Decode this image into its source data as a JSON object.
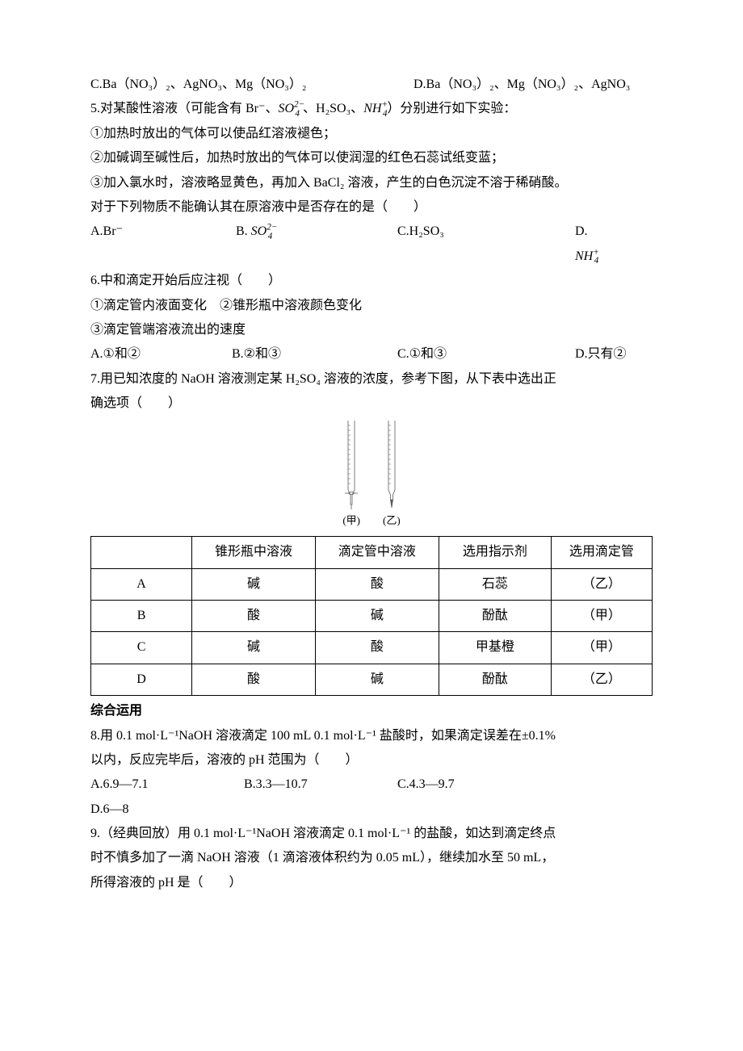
{
  "q4": {
    "optC": "C.Ba（NO₃）₂、AgNO₃、Mg（NO₃）₂",
    "optD": "D.Ba（NO₃）₂、Mg（NO₃）₂、AgNO₃"
  },
  "q5": {
    "stem_pre": "5.对某酸性溶液（可能含有 Br⁻、",
    "so4_core": "SO",
    "so4_charge": "2−",
    "so4_sub": "4",
    "mid1": " 、H₂SO₃、",
    "nh4_core": "NH",
    "nh4_charge": "+",
    "nh4_sub": "4",
    "stem_post": "）分别进行如下实验：",
    "l1": "①加热时放出的气体可以使品红溶液褪色；",
    "l2": "②加碱调至碱性后，加热时放出的气体可以使润湿的红色石蕊试纸变蓝；",
    "l3": "③加入氯水时，溶液略显黄色，再加入 BaCl₂ 溶液，产生的白色沉淀不溶于稀硝酸。",
    "ask": "对于下列物质不能确认其在原溶液中是否存在的是（　　）",
    "optA": "A.Br⁻",
    "optB_pre": "B. ",
    "optC": "C.H₂SO₃",
    "optD_pre": "D. "
  },
  "q6": {
    "stem": "6.中和滴定开始后应注视（　　）",
    "l1": "①滴定管内液面变化　②锥形瓶中溶液颜色变化",
    "l2": "③滴定管端溶液流出的速度",
    "optA": "A.①和②",
    "optB": "B.②和③",
    "optC": "C.①和③",
    "optD": "D.只有②"
  },
  "q7": {
    "stem1": "7.用已知浓度的 NaOH 溶液测定某 H₂SO₄ 溶液的浓度，参考下图，从下表中选出正",
    "stem2": "确选项（　　）",
    "fig_label_left": "(甲)",
    "fig_label_right": "(乙)",
    "svg_stroke": "#5a5a5a",
    "table": {
      "headers": [
        "",
        "锥形瓶中溶液",
        "滴定管中溶液",
        "选用指示剂",
        "选用滴定管"
      ],
      "rows": [
        [
          "A",
          "碱",
          "酸",
          "石蕊",
          "（乙）"
        ],
        [
          "B",
          "酸",
          "碱",
          "酚酞",
          "（甲）"
        ],
        [
          "C",
          "碱",
          "酸",
          "甲基橙",
          "（甲）"
        ],
        [
          "D",
          "酸",
          "碱",
          "酚酞",
          "（乙）"
        ]
      ],
      "col_widths": [
        "18%",
        "22%",
        "22%",
        "20%",
        "18%"
      ]
    }
  },
  "section2": "综合运用",
  "q8": {
    "stem1": "8.用 0.1 mol·L⁻¹NaOH 溶液滴定 100 mL 0.1 mol·L⁻¹ 盐酸时，如果滴定误差在±0.1%",
    "stem2": "以内，反应完毕后，溶液的 pH 范围为（　　）",
    "optA": "A.6.9—7.1",
    "optB": "B.3.3—10.7",
    "optC": "C.4.3—9.7",
    "optD": "D.6—8"
  },
  "q9": {
    "l1": "9.（经典回放）用 0.1 mol·L⁻¹NaOH 溶液滴定 0.1 mol·L⁻¹ 的盐酸，如达到滴定终点",
    "l2": "时不慎多加了一滴 NaOH 溶液（1 滴溶液体积约为 0.05 mL），继续加水至 50 mL，",
    "l3": "所得溶液的 pH 是（　　）"
  }
}
